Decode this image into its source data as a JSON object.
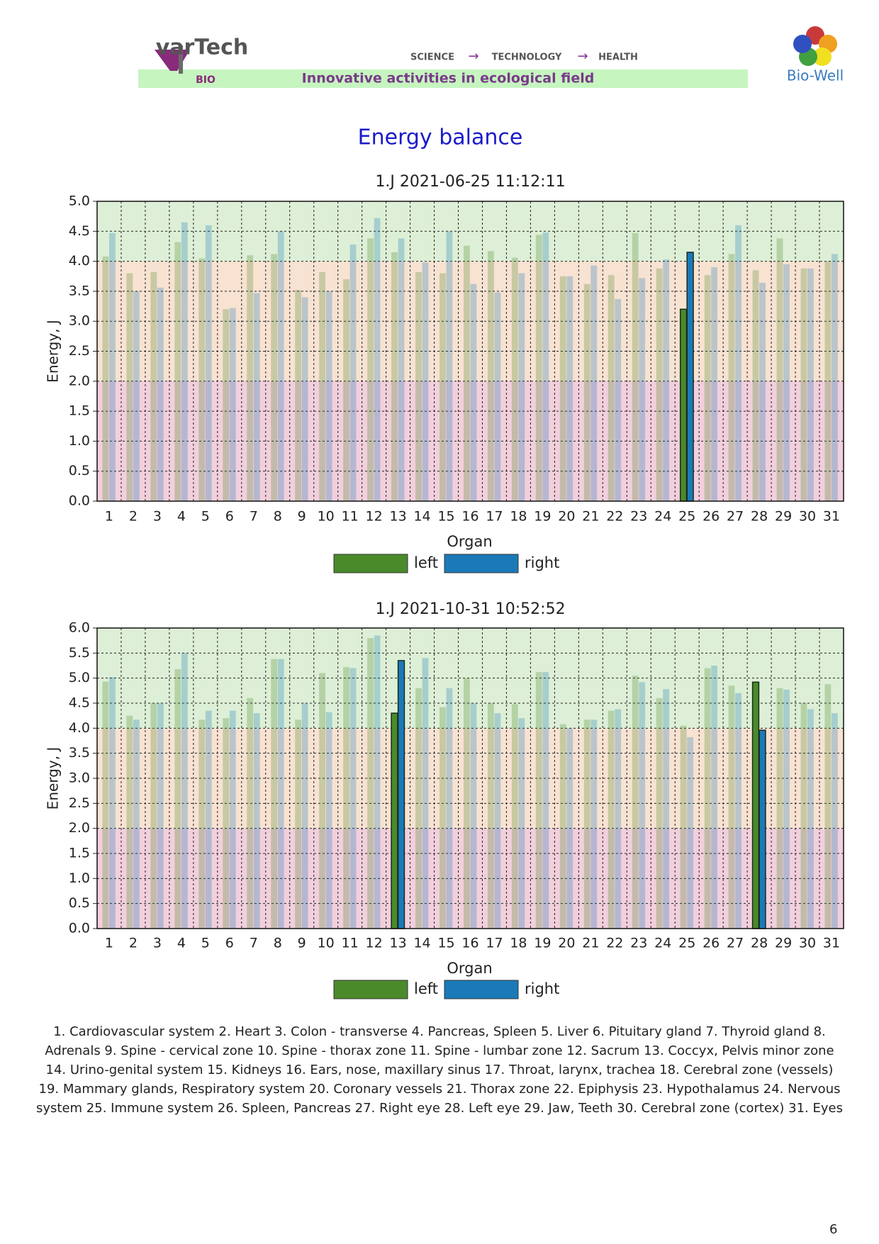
{
  "header": {
    "logo_left": "varTech",
    "logo_left_sub": "BIO",
    "steps": [
      "SCIENCE",
      "TECHNOLOGY",
      "HEALTH"
    ],
    "banner": "Innovative activities in ecological field",
    "logo_right": "Bio-Well"
  },
  "title": "Energy balance",
  "chart_data": [
    {
      "type": "bar",
      "title": "1.J 2021-06-25 11:12:11",
      "x_label": "Organ",
      "y_label": "Energy, J",
      "categories": [
        "1",
        "2",
        "3",
        "4",
        "5",
        "6",
        "7",
        "8",
        "9",
        "10",
        "11",
        "12",
        "13",
        "14",
        "15",
        "16",
        "17",
        "18",
        "19",
        "20",
        "21",
        "22",
        "23",
        "24",
        "25",
        "26",
        "27",
        "28",
        "29",
        "30",
        "31"
      ],
      "series": [
        {
          "name": "left",
          "color": "#4a8a2a",
          "values": [
            4.08,
            3.8,
            3.82,
            4.32,
            4.05,
            3.2,
            4.1,
            4.12,
            3.52,
            3.82,
            3.7,
            4.38,
            4.15,
            3.82,
            3.8,
            4.26,
            4.17,
            4.06,
            4.44,
            3.75,
            3.62,
            3.77,
            4.47,
            3.88,
            3.2,
            3.77,
            4.12,
            3.85,
            4.38,
            3.88,
            4.0
          ]
        },
        {
          "name": "right",
          "color": "#1a7ab8",
          "values": [
            4.47,
            3.5,
            3.56,
            4.65,
            4.6,
            3.22,
            3.47,
            4.5,
            3.4,
            3.5,
            4.28,
            4.72,
            4.38,
            3.98,
            4.5,
            3.62,
            3.48,
            3.8,
            4.48,
            3.75,
            3.93,
            3.37,
            3.72,
            4.03,
            4.15,
            3.9,
            4.6,
            3.64,
            3.95,
            3.88,
            4.12
          ]
        }
      ],
      "highlight_categories": [
        "25"
      ],
      "bands": [
        {
          "from": 0,
          "to": 2,
          "color": "#f2cfdc"
        },
        {
          "from": 2,
          "to": 4,
          "color": "#f8e2d2"
        },
        {
          "from": 4,
          "to": 5,
          "color": "#ddefd6"
        }
      ],
      "ylim": [
        0,
        5
      ],
      "yticks": [
        {
          "value": 0,
          "label": "0.0"
        },
        0.5,
        {
          "value": 1,
          "label": "1.0"
        },
        1.5,
        {
          "value": 2,
          "label": "2.0"
        },
        2.5,
        {
          "value": 3,
          "label": "3.0"
        },
        3.5,
        {
          "value": 4,
          "label": "4.0"
        },
        4.5,
        {
          "value": 5,
          "label": "5.0"
        }
      ],
      "grid": true
    },
    {
      "type": "bar",
      "title": "1.J 2021-10-31 10:52:52",
      "x_label": "Organ",
      "y_label": "Energy, J",
      "categories": [
        "1",
        "2",
        "3",
        "4",
        "5",
        "6",
        "7",
        "8",
        "9",
        "10",
        "11",
        "12",
        "13",
        "14",
        "15",
        "16",
        "17",
        "18",
        "19",
        "20",
        "21",
        "22",
        "23",
        "24",
        "25",
        "26",
        "27",
        "28",
        "29",
        "30",
        "31"
      ],
      "series": [
        {
          "name": "left",
          "color": "#4a8a2a",
          "values": [
            4.93,
            4.25,
            4.5,
            5.18,
            4.17,
            4.2,
            4.6,
            5.38,
            4.17,
            5.1,
            5.22,
            5.8,
            4.3,
            4.8,
            4.42,
            5.0,
            4.5,
            4.48,
            5.12,
            4.08,
            4.17,
            4.35,
            5.05,
            4.6,
            4.05,
            5.2,
            4.85,
            4.92,
            4.8,
            4.5,
            4.88
          ]
        },
        {
          "name": "right",
          "color": "#1a7ab8",
          "values": [
            5.02,
            4.17,
            4.5,
            5.5,
            4.35,
            4.35,
            4.3,
            5.38,
            4.5,
            4.32,
            5.2,
            5.85,
            5.35,
            5.4,
            4.8,
            4.5,
            4.3,
            4.2,
            5.12,
            4.0,
            4.17,
            4.38,
            4.92,
            4.78,
            3.82,
            5.25,
            4.7,
            3.96,
            4.77,
            4.38,
            4.3
          ]
        }
      ],
      "highlight_categories": [
        "13",
        "28"
      ],
      "bands": [
        {
          "from": 0,
          "to": 2,
          "color": "#f2cfdc"
        },
        {
          "from": 2,
          "to": 4,
          "color": "#f8e2d2"
        },
        {
          "from": 4,
          "to": 6,
          "color": "#ddefd6"
        }
      ],
      "ylim": [
        0,
        6
      ],
      "yticks": [
        {
          "value": 0,
          "label": "0.0"
        },
        0.5,
        {
          "value": 1,
          "label": "1.0"
        },
        1.5,
        {
          "value": 2,
          "label": "2.0"
        },
        2.5,
        {
          "value": 3,
          "label": "3.0"
        },
        3.5,
        {
          "value": 4,
          "label": "4.0"
        },
        4.5,
        {
          "value": 5,
          "label": "5.0"
        },
        5.5,
        {
          "value": 6,
          "label": "6.0"
        }
      ],
      "grid": true
    }
  ],
  "footnote": "1. Cardiovascular system 2. Heart 3. Colon - transverse 4. Pancreas, Spleen 5. Liver 6. Pituitary gland 7. Thyroid gland 8. Adrenals 9. Spine - cervical zone 10. Spine - thorax zone 11. Spine - lumbar zone 12. Sacrum 13. Coccyx, Pelvis minor zone 14. Urino-genital system 15. Kidneys 16. Ears, nose, maxillary sinus 17. Throat, larynx, trachea 18. Cerebral zone (vessels) 19. Mammary glands, Respiratory system 20. Coronary vessels 21. Thorax zone 22. Epiphysis 23. Hypothalamus 24. Nervous system 25. Immune system 26. Spleen, Pancreas 27. Right eye 28. Left eye 29. Jaw, Teeth 30. Cerebral zone (cortex) 31. Eyes",
  "page_number": "6"
}
